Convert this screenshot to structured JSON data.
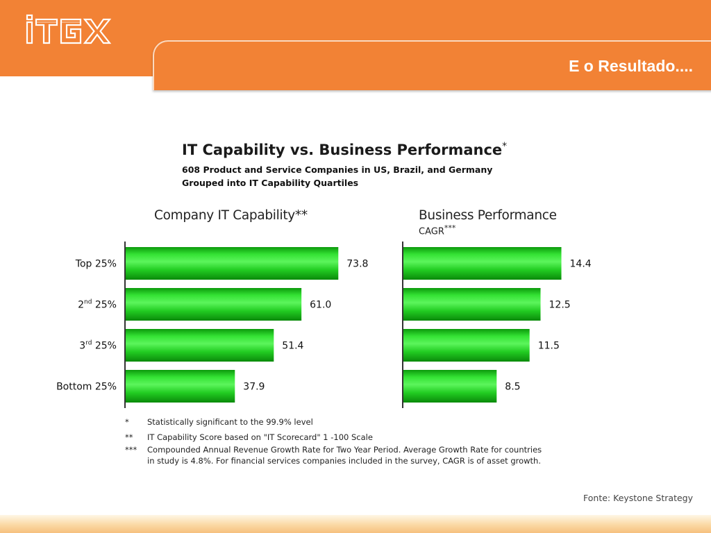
{
  "header": {
    "logo_text": "iTGX",
    "slide_title": "E o Resultado...."
  },
  "colors": {
    "orange": "#f28235",
    "bar_green": "#1fd11f",
    "bar_dark": "#0a8f0a"
  },
  "chart_data": [
    {
      "type": "bar",
      "orientation": "horizontal",
      "title": "IT Capability vs. Business Performance",
      "title_mark": "*",
      "subtitle_lines": [
        "608 Product and Service Companies in US, Brazil, and Germany",
        "Grouped into IT Capability Quartiles"
      ],
      "panel_title": "Company IT Capability**",
      "categories": [
        "Top 25%",
        "2nd 25%",
        "3rd 25%",
        "Bottom 25%"
      ],
      "values": [
        73.8,
        61.0,
        51.4,
        37.9
      ],
      "value_labels": [
        "73.8",
        "61.0",
        "51.4",
        "37.9"
      ],
      "xlim": [
        0,
        100
      ],
      "grid": false,
      "legend": "none"
    },
    {
      "type": "bar",
      "orientation": "horizontal",
      "panel_title": "Business Performance",
      "panel_subtitle": "CAGR",
      "panel_subtitle_mark": "***",
      "categories": [
        "Top 25%",
        "2nd 25%",
        "3rd 25%",
        "Bottom 25%"
      ],
      "values": [
        14.4,
        12.5,
        11.5,
        8.5
      ],
      "value_labels": [
        "14.4",
        "12.5",
        "11.5",
        "8.5"
      ],
      "xlim": [
        0,
        20
      ],
      "grid": false,
      "legend": "none"
    }
  ],
  "categories_display": [
    {
      "base": "Top 25%",
      "sup": "",
      "rest": ""
    },
    {
      "base": "2",
      "sup": "nd",
      "rest": " 25%"
    },
    {
      "base": "3",
      "sup": "rd",
      "rest": " 25%"
    },
    {
      "base": "Bottom 25%",
      "sup": "",
      "rest": ""
    }
  ],
  "notes": [
    {
      "mark": "*",
      "lines": [
        "Statistically significant to the 99.9% level"
      ]
    },
    {
      "mark": "**",
      "lines": [
        "IT Capability Score based on \"IT Scorecard\" 1 -100 Scale"
      ]
    },
    {
      "mark": "***",
      "lines": [
        "Compounded Annual Revenue Growth Rate for Two Year Period.  Average Growth Rate for countries",
        "in study is 4.8%.  For financial services companies included in the survey, CAGR is of asset growth."
      ]
    }
  ],
  "source": "Fonte: Keystone Strategy"
}
